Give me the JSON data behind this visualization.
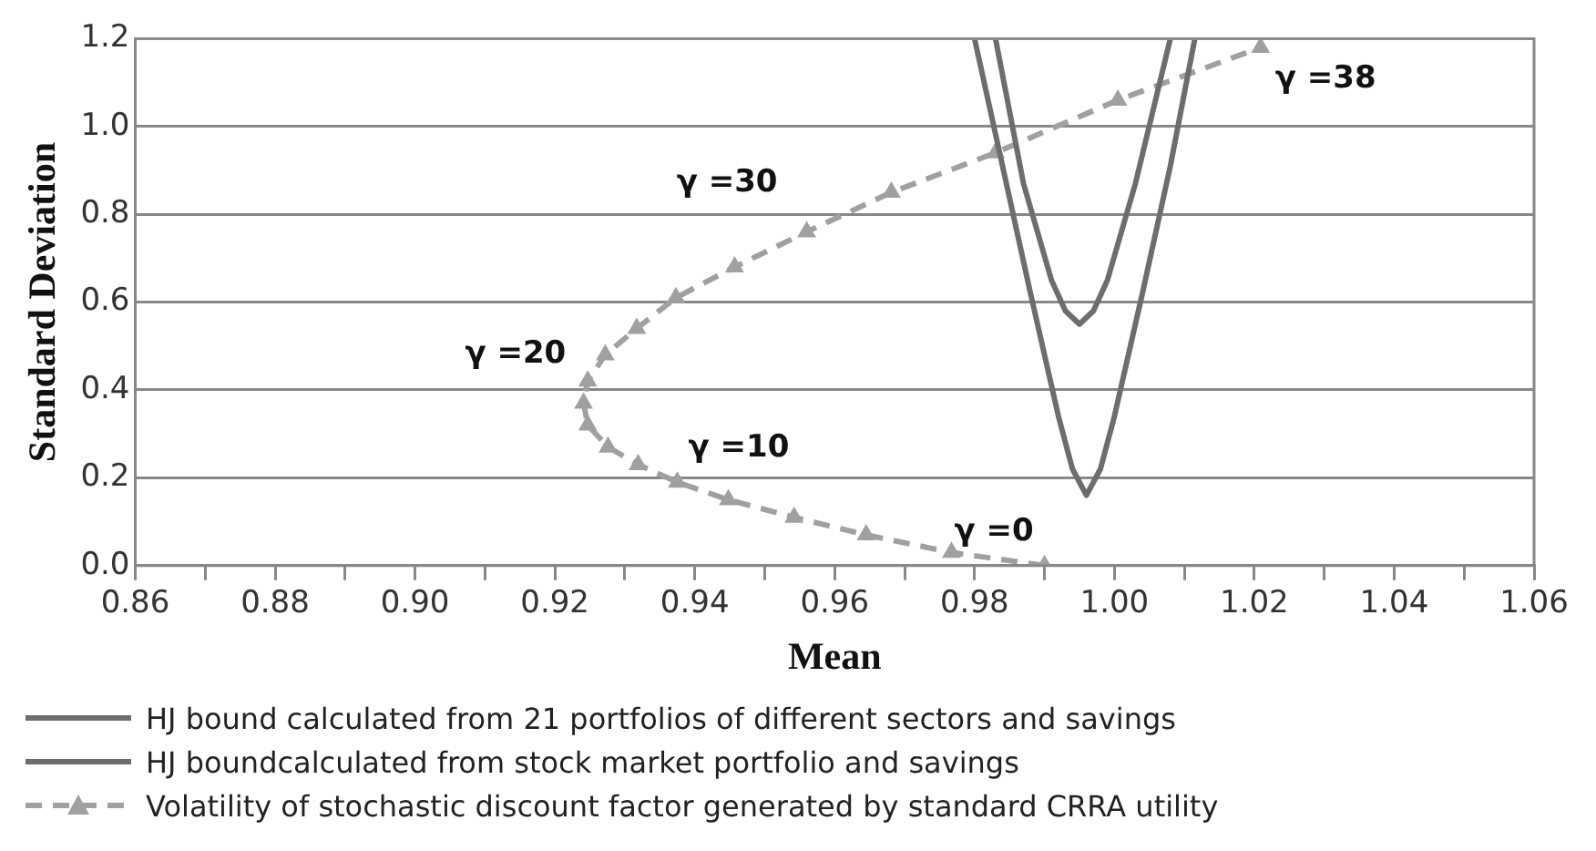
{
  "chart_data": {
    "type": "line",
    "xlabel": "Mean",
    "ylabel": "Standard Deviation",
    "xlim": [
      0.86,
      1.06
    ],
    "ylim": [
      0,
      1.2
    ],
    "xticks": [
      {
        "value": 0.86,
        "label": "0.86"
      },
      {
        "value": 0.87,
        "label": null
      },
      {
        "value": 0.88,
        "label": "0.88"
      },
      {
        "value": 0.89,
        "label": null
      },
      {
        "value": 0.9,
        "label": "0.90"
      },
      {
        "value": 0.91,
        "label": null
      },
      {
        "value": 0.92,
        "label": "0.92"
      },
      {
        "value": 0.93,
        "label": null
      },
      {
        "value": 0.94,
        "label": "0.94"
      },
      {
        "value": 0.95,
        "label": null
      },
      {
        "value": 0.96,
        "label": "0.96"
      },
      {
        "value": 0.97,
        "label": null
      },
      {
        "value": 0.98,
        "label": "0.98"
      },
      {
        "value": 0.99,
        "label": null
      },
      {
        "value": 1.0,
        "label": "1.00"
      },
      {
        "value": 1.01,
        "label": null
      },
      {
        "value": 1.02,
        "label": "1.02"
      },
      {
        "value": 1.03,
        "label": null
      },
      {
        "value": 1.04,
        "label": "1.04"
      },
      {
        "value": 1.05,
        "label": null
      },
      {
        "value": 1.06,
        "label": "1.06"
      }
    ],
    "yticks": [
      {
        "value": 0,
        "label": "0.0"
      },
      {
        "value": 0.2,
        "label": "0.2"
      },
      {
        "value": 0.4,
        "label": "0.4"
      },
      {
        "value": 0.6,
        "label": "0.6"
      },
      {
        "value": 0.8,
        "label": "0.8"
      },
      {
        "value": 1.0,
        "label": "1.0"
      },
      {
        "value": 1.2,
        "label": "1.2"
      }
    ],
    "grid": "y",
    "legend": "bottom",
    "series": [
      {
        "name": "HJ bound calculated from 21 portfolios of different sectors and savings",
        "color": "#6d6d6d",
        "marker": "none",
        "line_style": "solid",
        "x": [
          0.983,
          0.987,
          0.991,
          0.993,
          0.995,
          0.997,
          0.999,
          1.003,
          1.008
        ],
        "values": [
          1.2,
          0.87,
          0.65,
          0.58,
          0.55,
          0.58,
          0.65,
          0.87,
          1.2
        ]
      },
      {
        "name": "HJ boundcalculated from stock market portfolio and savings",
        "color": "#6d6d6d",
        "marker": "none",
        "line_style": "solid",
        "x": [
          0.98,
          0.984,
          0.988,
          0.992,
          0.994,
          0.996,
          0.998,
          1.0,
          1.004,
          1.008,
          1.0115
        ],
        "values": [
          1.2,
          0.91,
          0.62,
          0.34,
          0.22,
          0.16,
          0.22,
          0.34,
          0.62,
          0.91,
          1.2
        ]
      },
      {
        "name": "Volatility of stochastic discount factor generated by standard CRRA utility",
        "color": "#a0a0a0",
        "marker": "triangle",
        "line_style": "dashed",
        "x": [
          0.99,
          0.9767,
          0.9645,
          0.9542,
          0.9448,
          0.9375,
          0.9319,
          0.9276,
          0.9247,
          0.9241,
          0.9247,
          0.9272,
          0.9317,
          0.9373,
          0.9457,
          0.956,
          0.9681,
          0.983,
          1.0005,
          1.0209
        ],
        "values": [
          0,
          0.03,
          0.07,
          0.11,
          0.15,
          0.19,
          0.23,
          0.27,
          0.32,
          0.37,
          0.42,
          0.48,
          0.54,
          0.61,
          0.68,
          0.76,
          0.85,
          0.94,
          1.06,
          1.18
        ]
      }
    ],
    "annotations": [
      {
        "text": "γ =0",
        "x": 0.99,
        "y": 0
      },
      {
        "text": "γ =10",
        "x": 0.9375,
        "y": 0.19
      },
      {
        "text": "γ =20",
        "x": 0.9247,
        "y": 0.42
      },
      {
        "text": "γ =30",
        "x": 0.956,
        "y": 0.76
      },
      {
        "text": "γ =38",
        "x": 1.0209,
        "y": 1.18
      }
    ]
  }
}
